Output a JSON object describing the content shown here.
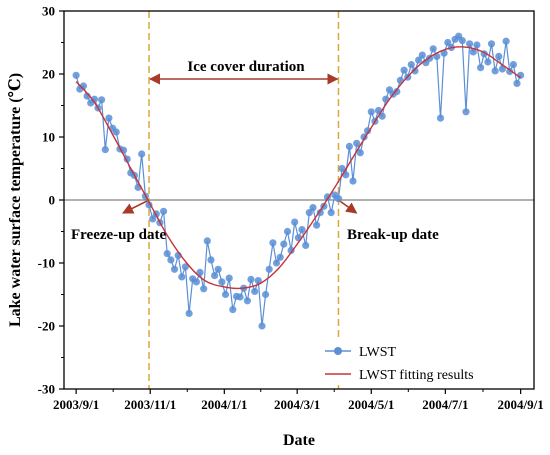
{
  "chart_data": {
    "type": "line",
    "xlabel": "Date",
    "ylabel": "Lake water surface temperature (℃)",
    "x_tick_labels": [
      "2003/9/1",
      "2003/11/1",
      "2004/1/1",
      "2004/3/1",
      "2004/5/1",
      "2004/7/1",
      "2004/9/1"
    ],
    "y_tick_labels": [
      "-30",
      "-20",
      "-10",
      "0",
      "10",
      "20",
      "30"
    ],
    "xlim": [
      "2003-08-22",
      "2004-09-12"
    ],
    "ylim": [
      -30,
      30
    ],
    "grid": false,
    "legend_position": "bottom-right",
    "colors": {
      "lwst": "#5b8fd6",
      "fit": "#c8323a",
      "vline": "#d9a93a",
      "arrow": "#a83a2a",
      "zero": "#808080"
    },
    "zero_line": 0,
    "freeze_up_date": "2003-10-31",
    "break_up_date": "2004-04-04",
    "annotations": {
      "ice_cover": "Ice cover duration",
      "freeze_up": "Freeze-up date",
      "break_up": "Break-up date"
    },
    "series": [
      {
        "name": "LWST",
        "style": "line+markers",
        "points": [
          [
            "2003-09-01",
            19.8
          ],
          [
            "2003-09-04",
            17.6
          ],
          [
            "2003-09-07",
            18.1
          ],
          [
            "2003-09-10",
            16.5
          ],
          [
            "2003-09-13",
            15.4
          ],
          [
            "2003-09-16",
            16.0
          ],
          [
            "2003-09-19",
            14.6
          ],
          [
            "2003-09-22",
            15.9
          ],
          [
            "2003-09-25",
            8.0
          ],
          [
            "2003-09-28",
            13.0
          ],
          [
            "2003-10-01",
            11.4
          ],
          [
            "2003-10-04",
            10.8
          ],
          [
            "2003-10-07",
            8.1
          ],
          [
            "2003-10-10",
            7.9
          ],
          [
            "2003-10-13",
            6.5
          ],
          [
            "2003-10-16",
            4.3
          ],
          [
            "2003-10-19",
            3.9
          ],
          [
            "2003-10-22",
            2.0
          ],
          [
            "2003-10-25",
            7.3
          ],
          [
            "2003-10-28",
            0.6
          ],
          [
            "2003-10-31",
            -0.8
          ],
          [
            "2003-11-03",
            -3.0
          ],
          [
            "2003-11-06",
            -2.2
          ],
          [
            "2003-11-09",
            -3.6
          ],
          [
            "2003-11-12",
            -1.8
          ],
          [
            "2003-11-15",
            -8.5
          ],
          [
            "2003-11-18",
            -9.5
          ],
          [
            "2003-11-21",
            -11.0
          ],
          [
            "2003-11-24",
            -8.8
          ],
          [
            "2003-11-27",
            -12.2
          ],
          [
            "2003-11-30",
            -10.6
          ],
          [
            "2003-12-03",
            -18.0
          ],
          [
            "2003-12-06",
            -12.5
          ],
          [
            "2003-12-09",
            -13.0
          ],
          [
            "2003-12-12",
            -11.5
          ],
          [
            "2003-12-15",
            -14.1
          ],
          [
            "2003-12-18",
            -6.5
          ],
          [
            "2003-12-21",
            -9.5
          ],
          [
            "2003-12-24",
            -12.0
          ],
          [
            "2003-12-27",
            -11.0
          ],
          [
            "2003-12-30",
            -13.0
          ],
          [
            "2004-01-02",
            -15.0
          ],
          [
            "2004-01-05",
            -12.4
          ],
          [
            "2004-01-08",
            -17.4
          ],
          [
            "2004-01-11",
            -15.3
          ],
          [
            "2004-01-14",
            -15.4
          ],
          [
            "2004-01-17",
            -14.0
          ],
          [
            "2004-01-20",
            -16.0
          ],
          [
            "2004-01-23",
            -12.6
          ],
          [
            "2004-01-26",
            -14.5
          ],
          [
            "2004-01-29",
            -12.8
          ],
          [
            "2004-02-01",
            -20.0
          ],
          [
            "2004-02-04",
            -15.0
          ],
          [
            "2004-02-07",
            -11.0
          ],
          [
            "2004-02-10",
            -6.8
          ],
          [
            "2004-02-13",
            -10.0
          ],
          [
            "2004-02-16",
            -9.1
          ],
          [
            "2004-02-19",
            -7.0
          ],
          [
            "2004-02-22",
            -5.0
          ],
          [
            "2004-02-25",
            -8.0
          ],
          [
            "2004-02-28",
            -3.5
          ],
          [
            "2004-03-02",
            -6.0
          ],
          [
            "2004-03-05",
            -4.7
          ],
          [
            "2004-03-08",
            -7.2
          ],
          [
            "2004-03-11",
            -2.0
          ],
          [
            "2004-03-14",
            -1.2
          ],
          [
            "2004-03-17",
            -4.0
          ],
          [
            "2004-03-20",
            -2.0
          ],
          [
            "2004-03-23",
            -1.0
          ],
          [
            "2004-03-26",
            0.5
          ],
          [
            "2004-03-29",
            -2.0
          ],
          [
            "2004-04-01",
            0.8
          ],
          [
            "2004-04-04",
            0.2
          ],
          [
            "2004-04-07",
            5.0
          ],
          [
            "2004-04-10",
            4.0
          ],
          [
            "2004-04-13",
            8.5
          ],
          [
            "2004-04-16",
            3.0
          ],
          [
            "2004-04-19",
            9.0
          ],
          [
            "2004-04-22",
            7.5
          ],
          [
            "2004-04-25",
            10.0
          ],
          [
            "2004-04-28",
            11.0
          ],
          [
            "2004-05-01",
            14.0
          ],
          [
            "2004-05-04",
            12.5
          ],
          [
            "2004-05-07",
            14.2
          ],
          [
            "2004-05-10",
            13.3
          ],
          [
            "2004-05-13",
            16.0
          ],
          [
            "2004-05-16",
            17.5
          ],
          [
            "2004-05-19",
            16.8
          ],
          [
            "2004-05-22",
            17.2
          ],
          [
            "2004-05-25",
            19.0
          ],
          [
            "2004-05-28",
            20.6
          ],
          [
            "2004-05-31",
            19.5
          ],
          [
            "2004-06-03",
            21.5
          ],
          [
            "2004-06-06",
            20.5
          ],
          [
            "2004-06-09",
            22.2
          ],
          [
            "2004-06-12",
            23.0
          ],
          [
            "2004-06-15",
            21.8
          ],
          [
            "2004-06-18",
            22.5
          ],
          [
            "2004-06-21",
            24.0
          ],
          [
            "2004-06-24",
            22.8
          ],
          [
            "2004-06-27",
            13.0
          ],
          [
            "2004-06-30",
            23.3
          ],
          [
            "2004-07-03",
            25.0
          ],
          [
            "2004-07-06",
            24.2
          ],
          [
            "2004-07-09",
            25.5
          ],
          [
            "2004-07-12",
            26.0
          ],
          [
            "2004-07-15",
            25.3
          ],
          [
            "2004-07-18",
            14.0
          ],
          [
            "2004-07-21",
            24.8
          ],
          [
            "2004-07-24",
            23.5
          ],
          [
            "2004-07-27",
            24.6
          ],
          [
            "2004-07-30",
            21.0
          ],
          [
            "2004-08-02",
            23.2
          ],
          [
            "2004-08-05",
            21.9
          ],
          [
            "2004-08-08",
            24.8
          ],
          [
            "2004-08-11",
            20.5
          ],
          [
            "2004-08-14",
            22.8
          ],
          [
            "2004-08-17",
            20.8
          ],
          [
            "2004-08-20",
            25.2
          ],
          [
            "2004-08-23",
            20.4
          ],
          [
            "2004-08-26",
            21.5
          ],
          [
            "2004-08-29",
            18.5
          ],
          [
            "2004-09-01",
            19.8
          ]
        ]
      },
      {
        "name": "LWST fitting results",
        "style": "line",
        "points": [
          [
            "2003-09-01",
            18.8
          ],
          [
            "2003-09-16",
            15.5
          ],
          [
            "2003-10-01",
            10.4
          ],
          [
            "2003-10-16",
            5.0
          ],
          [
            "2003-10-31",
            -0.3
          ],
          [
            "2003-11-15",
            -5.6
          ],
          [
            "2003-12-01",
            -10.0
          ],
          [
            "2003-12-16",
            -12.8
          ],
          [
            "2004-01-01",
            -13.8
          ],
          [
            "2004-01-16",
            -14.0
          ],
          [
            "2004-01-31",
            -13.2
          ],
          [
            "2004-02-15",
            -10.8
          ],
          [
            "2004-03-01",
            -7.0
          ],
          [
            "2004-03-16",
            -2.8
          ],
          [
            "2004-04-01",
            2.0
          ],
          [
            "2004-04-16",
            6.8
          ],
          [
            "2004-05-01",
            11.5
          ],
          [
            "2004-05-16",
            16.0
          ],
          [
            "2004-06-01",
            19.8
          ],
          [
            "2004-06-16",
            22.4
          ],
          [
            "2004-07-01",
            23.9
          ],
          [
            "2004-07-16",
            24.3
          ],
          [
            "2004-08-01",
            23.5
          ],
          [
            "2004-08-16",
            21.6
          ],
          [
            "2004-09-01",
            19.4
          ]
        ]
      }
    ]
  }
}
